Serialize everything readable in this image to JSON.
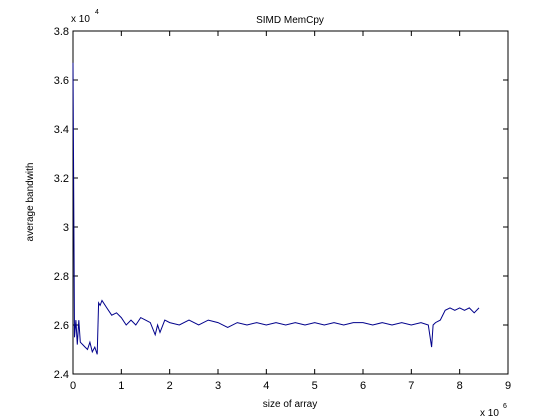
{
  "chart_data": {
    "type": "line",
    "title": "SIMD MemCpy",
    "xlabel": "size of array",
    "ylabel": "average bandwith",
    "x_multiplier": {
      "base": "x 10",
      "exponent": "6"
    },
    "y_multiplier": {
      "base": "x 10",
      "exponent": "4"
    },
    "xlim": [
      0,
      9
    ],
    "ylim": [
      2.4,
      3.8
    ],
    "x_ticks": [
      "0",
      "1",
      "2",
      "3",
      "4",
      "5",
      "6",
      "7",
      "8",
      "9"
    ],
    "y_ticks": [
      "2.4",
      "2.6",
      "2.8",
      "3",
      "3.2",
      "3.4",
      "3.6",
      "3.8"
    ],
    "grid": false,
    "line_color": "#00008b",
    "series": [
      {
        "x": [
          0.0,
          0.03,
          0.06,
          0.09,
          0.12,
          0.15,
          0.2,
          0.25,
          0.3,
          0.35,
          0.4,
          0.45,
          0.5,
          0.53,
          0.56,
          0.6,
          0.7,
          0.8,
          0.9,
          1.0,
          1.1,
          1.2,
          1.3,
          1.4,
          1.5,
          1.6,
          1.7,
          1.75,
          1.8,
          1.9,
          2.0,
          2.2,
          2.4,
          2.6,
          2.8,
          3.0,
          3.2,
          3.4,
          3.6,
          3.8,
          4.0,
          4.2,
          4.4,
          4.6,
          4.8,
          5.0,
          5.2,
          5.4,
          5.6,
          5.8,
          6.0,
          6.2,
          6.4,
          6.6,
          6.8,
          7.0,
          7.2,
          7.35,
          7.42,
          7.45,
          7.5,
          7.6,
          7.7,
          7.8,
          7.9,
          8.0,
          8.1,
          8.2,
          8.3,
          8.4
        ],
        "y": [
          3.67,
          2.55,
          2.62,
          2.52,
          2.62,
          2.53,
          2.52,
          2.51,
          2.5,
          2.53,
          2.49,
          2.51,
          2.48,
          2.69,
          2.68,
          2.7,
          2.67,
          2.64,
          2.65,
          2.63,
          2.6,
          2.62,
          2.6,
          2.63,
          2.62,
          2.61,
          2.56,
          2.6,
          2.57,
          2.62,
          2.61,
          2.6,
          2.62,
          2.6,
          2.62,
          2.61,
          2.59,
          2.61,
          2.6,
          2.61,
          2.6,
          2.61,
          2.6,
          2.61,
          2.6,
          2.61,
          2.6,
          2.61,
          2.6,
          2.61,
          2.61,
          2.6,
          2.61,
          2.6,
          2.61,
          2.6,
          2.61,
          2.6,
          2.51,
          2.6,
          2.61,
          2.62,
          2.66,
          2.67,
          2.66,
          2.67,
          2.66,
          2.67,
          2.65,
          2.67
        ]
      }
    ]
  }
}
